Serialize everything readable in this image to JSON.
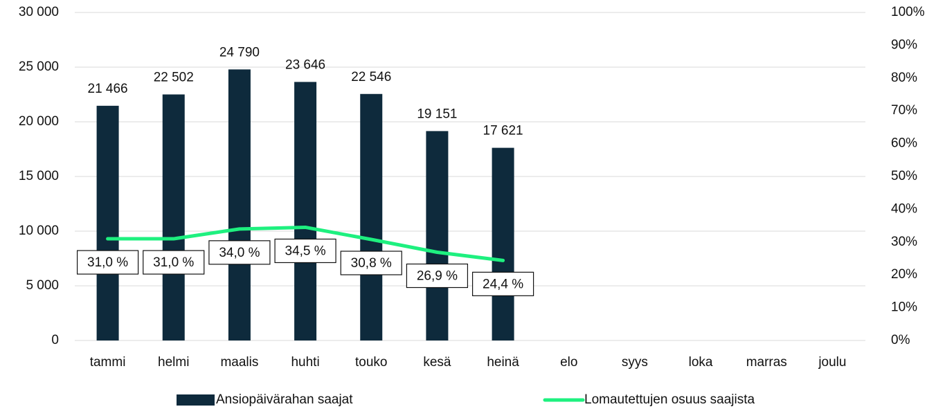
{
  "chart_data": {
    "type": "bar-line",
    "categories": [
      "tammi",
      "helmi",
      "maalis",
      "huhti",
      "touko",
      "kesä",
      "heinä",
      "elo",
      "syys",
      "loka",
      "marras",
      "joulu"
    ],
    "series": [
      {
        "name": "Ansiopäivärahan saajat",
        "type": "bar",
        "color": "#0e2a3c",
        "values": [
          21466,
          22502,
          24790,
          23646,
          22546,
          19151,
          17621,
          null,
          null,
          null,
          null,
          null
        ],
        "value_labels": [
          "21 466",
          "22 502",
          "24 790",
          "23 646",
          "22 546",
          "19 151",
          "17 621",
          null,
          null,
          null,
          null,
          null
        ]
      },
      {
        "name": "Lomautettujen osuus saajista",
        "type": "line",
        "axis": "y2",
        "color": "#1ef07f",
        "values": [
          31.0,
          31.0,
          34.0,
          34.5,
          30.8,
          26.9,
          24.4,
          null,
          null,
          null,
          null,
          null
        ],
        "value_labels": [
          "31,0 %",
          "31,0 %",
          "34,0 %",
          "34,5 %",
          "30,8 %",
          "26,9 %",
          "24,4 %",
          null,
          null,
          null,
          null,
          null
        ]
      }
    ],
    "ylim": [
      0,
      30000
    ],
    "yticks": [
      0,
      {
        "value": 5000,
        "label": "5 000"
      },
      {
        "value": 10000,
        "label": "10 000"
      },
      {
        "value": 15000,
        "label": "15 000"
      },
      {
        "value": 20000,
        "label": "20 000"
      },
      {
        "value": 25000,
        "label": "25 000"
      },
      {
        "value": 30000,
        "label": "30 000"
      }
    ],
    "y2lim": [
      0,
      100
    ],
    "y2ticks": [
      {
        "value": 0,
        "label": "0%"
      },
      {
        "value": 10,
        "label": "10%"
      },
      {
        "value": 20,
        "label": "20%"
      },
      {
        "value": 30,
        "label": "30%"
      },
      {
        "value": 40,
        "label": "40%"
      },
      {
        "value": 50,
        "label": "50%"
      },
      {
        "value": 60,
        "label": "60%"
      },
      {
        "value": 70,
        "label": "70%"
      },
      {
        "value": 80,
        "label": "80%"
      },
      {
        "value": 90,
        "label": "90%"
      },
      {
        "value": 100,
        "label": "100%"
      }
    ],
    "grid": true,
    "legend": "bottom"
  }
}
